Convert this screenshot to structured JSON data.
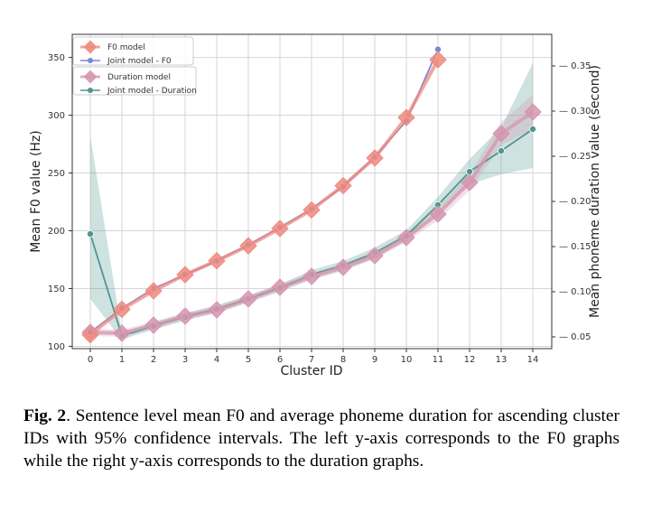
{
  "chart_data": {
    "type": "line",
    "x": [
      0,
      1,
      2,
      3,
      4,
      5,
      6,
      7,
      8,
      9,
      10,
      11,
      12,
      13,
      14
    ],
    "xlabel": "Cluster ID",
    "ylabel_left": "Mean F0 value (Hz)",
    "ylabel_right": "Mean phoneme duration value (second)",
    "ylim_left": [
      98,
      370
    ],
    "ylim_right": [
      0.037,
      0.385
    ],
    "yticks_left": [
      100,
      150,
      200,
      250,
      300,
      350
    ],
    "yticks_right": [
      0.05,
      0.1,
      0.15,
      0.2,
      0.25,
      0.3,
      0.35
    ],
    "ytick_labels_right": [
      "0.05",
      "0.10",
      "0.15",
      "0.20",
      "0.25",
      "0.30",
      "0.35"
    ],
    "grid": true,
    "legend_position": "top-left",
    "series": [
      {
        "name": "F0 model",
        "axis": "left",
        "marker": "diamond",
        "color": "#ee8a7e",
        "x": [
          0,
          1,
          2,
          3,
          4,
          5,
          6,
          7,
          8,
          9,
          10,
          11
        ],
        "values": [
          110,
          132,
          148,
          162,
          174,
          187,
          202,
          218,
          239,
          263,
          298,
          348
        ]
      },
      {
        "name": "Joint model - F0",
        "axis": "left",
        "marker": "circle",
        "color": "#7b86d6",
        "x": [
          0,
          1,
          2,
          3,
          4,
          5,
          6,
          7,
          8,
          9,
          10,
          11
        ],
        "values": [
          112,
          133,
          150,
          162,
          174,
          188,
          203,
          219,
          238,
          264,
          295,
          357
        ]
      },
      {
        "name": "Duration model",
        "axis": "right",
        "marker": "diamond",
        "color": "#d595ae",
        "x": [
          0,
          1,
          2,
          3,
          4,
          5,
          6,
          7,
          8,
          9,
          10,
          11,
          12,
          13,
          14
        ],
        "values": [
          0.055,
          0.054,
          0.063,
          0.073,
          0.08,
          0.092,
          0.105,
          0.117,
          0.127,
          0.14,
          0.16,
          0.186,
          0.221,
          0.275,
          0.299
        ],
        "ci_low": [
          0.051,
          0.05,
          0.059,
          0.069,
          0.076,
          0.088,
          0.101,
          0.113,
          0.123,
          0.136,
          0.155,
          0.179,
          0.212,
          0.262,
          0.28
        ],
        "ci_high": [
          0.059,
          0.058,
          0.067,
          0.077,
          0.084,
          0.096,
          0.109,
          0.121,
          0.131,
          0.144,
          0.165,
          0.193,
          0.23,
          0.288,
          0.318
        ]
      },
      {
        "name": "Joint model - Duration",
        "axis": "right",
        "marker": "circle",
        "color": "#4f9790",
        "x": [
          0,
          1,
          2,
          3,
          4,
          5,
          6,
          7,
          8,
          9,
          10,
          11,
          12,
          13,
          14
        ],
        "values": [
          0.164,
          0.051,
          0.062,
          0.072,
          0.081,
          0.092,
          0.104,
          0.119,
          0.129,
          0.143,
          0.162,
          0.196,
          0.233,
          0.256,
          0.28
        ],
        "ci_low": [
          0.092,
          0.047,
          0.058,
          0.068,
          0.077,
          0.088,
          0.1,
          0.114,
          0.124,
          0.137,
          0.156,
          0.187,
          0.219,
          0.23,
          0.237
        ],
        "ci_high": [
          0.272,
          0.055,
          0.066,
          0.076,
          0.085,
          0.096,
          0.108,
          0.124,
          0.134,
          0.149,
          0.168,
          0.205,
          0.247,
          0.282,
          0.353
        ]
      }
    ]
  },
  "caption": {
    "label": "Fig. 2",
    "text": ". Sentence level mean F0 and average phoneme duration for ascending cluster IDs with 95% confidence intervals. The left y-axis corresponds to the F0 graphs while the right y-axis corresponds to the duration graphs."
  },
  "colors": {
    "f0_model": "#ee8a7e",
    "joint_f0": "#7b86d6",
    "duration_model": "#d595ae",
    "joint_duration": "#4f9790",
    "grid": "#d6d6d6"
  }
}
